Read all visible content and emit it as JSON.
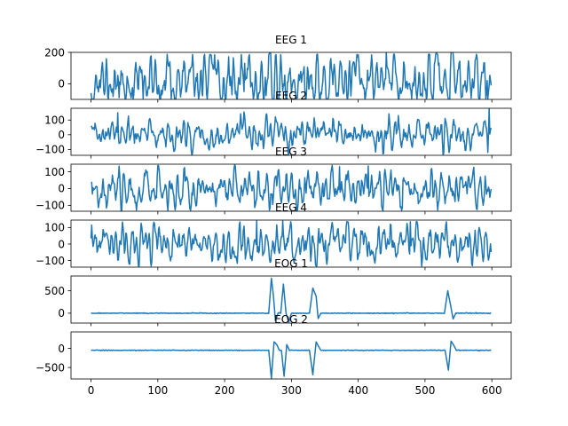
{
  "chart_data": {
    "type": "line",
    "layout": "stacked-subplots-shared-x",
    "line_color": "#1f77b4",
    "xlabel": "",
    "ylabel": "",
    "grid": false,
    "x_range": [
      0,
      599
    ],
    "xlim": [
      -30,
      629
    ],
    "x_ticks": [
      0,
      100,
      200,
      300,
      400,
      500,
      600
    ],
    "x_tick_labels": [
      "0",
      "100",
      "200",
      "300",
      "400",
      "500",
      "600"
    ],
    "panels": [
      {
        "title": "EEG 1",
        "ylim": [
          -100,
          200
        ],
        "y_ticks": [
          0,
          200
        ],
        "y_tick_labels": [
          "0",
          "200"
        ],
        "signal": "eeg",
        "amplitude": 85,
        "offset": 25,
        "seed": 11,
        "events": [],
        "peaks": [
          {
            "x": 442,
            "value": 200
          },
          {
            "x": 230,
            "value": 130
          }
        ]
      },
      {
        "title": "EEG 2",
        "ylim": [
          -140,
          180
        ],
        "y_ticks": [
          -100,
          0,
          100
        ],
        "y_tick_labels": [
          "−100",
          "0",
          "100"
        ],
        "signal": "eeg",
        "amplitude": 50,
        "offset": 0,
        "seed": 23,
        "events": [],
        "peaks": [
          {
            "x": 40,
            "value": 150
          },
          {
            "x": 596,
            "value": 185
          },
          {
            "x": 594,
            "value": -120
          }
        ]
      },
      {
        "title": "EEG 3",
        "ylim": [
          -135,
          145
        ],
        "y_ticks": [
          -100,
          0,
          100
        ],
        "y_tick_labels": [
          "−100",
          "0",
          "100"
        ],
        "signal": "eeg",
        "amplitude": 55,
        "offset": 0,
        "seed": 37,
        "events": [],
        "peaks": [
          {
            "x": 372,
            "value": 130
          },
          {
            "x": 415,
            "value": 135
          },
          {
            "x": 578,
            "value": -125
          }
        ]
      },
      {
        "title": "EEG 4",
        "ylim": [
          -140,
          145
        ],
        "y_ticks": [
          -100,
          0,
          100
        ],
        "y_tick_labels": [
          "−100",
          "0",
          "100"
        ],
        "signal": "eeg",
        "amplitude": 55,
        "offset": 0,
        "seed": 53,
        "events": [],
        "peaks": [
          {
            "x": 248,
            "value": 140
          },
          {
            "x": 287,
            "value": 140
          },
          {
            "x": 478,
            "value": 135
          }
        ]
      },
      {
        "title": "EOG 1",
        "ylim": [
          -220,
          830
        ],
        "y_ticks": [
          0,
          500
        ],
        "y_tick_labels": [
          "0",
          "500"
        ],
        "signal": "eog",
        "amplitude": 12,
        "offset": 0,
        "seed": 71,
        "events": [
          {
            "x": 272,
            "shape": [
              [
                -6,
                0
              ],
              [
                -2,
                780
              ],
              [
                1,
                400
              ],
              [
                4,
                -170
              ],
              [
                8,
                0
              ]
            ]
          },
          {
            "x": 290,
            "shape": [
              [
                -6,
                0
              ],
              [
                -2,
                650
              ],
              [
                2,
                -10
              ],
              [
                6,
                -200
              ],
              [
                10,
                0
              ]
            ]
          },
          {
            "x": 335,
            "shape": [
              [
                -8,
                0
              ],
              [
                -3,
                560
              ],
              [
                2,
                380
              ],
              [
                5,
                -120
              ],
              [
                9,
                0
              ]
            ]
          },
          {
            "x": 537,
            "shape": [
              [
                -8,
                0
              ],
              [
                -3,
                500
              ],
              [
                1,
                200
              ],
              [
                5,
                -130
              ],
              [
                9,
                0
              ]
            ]
          }
        ],
        "peaks": []
      },
      {
        "title": "EOG 2",
        "ylim": [
          -800,
          430
        ],
        "y_ticks": [
          -500,
          0
        ],
        "y_tick_labels": [
          "−500",
          "0"
        ],
        "signal": "eog",
        "amplitude": 12,
        "offset": -50,
        "seed": 89,
        "events": [
          {
            "x": 274,
            "shape": [
              [
                -8,
                0
              ],
              [
                -4,
                -730
              ],
              [
                0,
                220
              ],
              [
                4,
                150
              ],
              [
                8,
                0
              ]
            ]
          },
          {
            "x": 291,
            "shape": [
              [
                -6,
                0
              ],
              [
                -2,
                -680
              ],
              [
                2,
                150
              ],
              [
                6,
                0
              ]
            ]
          },
          {
            "x": 335,
            "shape": [
              [
                -8,
                0
              ],
              [
                -3,
                -640
              ],
              [
                2,
                220
              ],
              [
                5,
                120
              ],
              [
                9,
                0
              ]
            ]
          },
          {
            "x": 538,
            "shape": [
              [
                -8,
                0
              ],
              [
                -3,
                -520
              ],
              [
                1,
                240
              ],
              [
                5,
                130
              ],
              [
                9,
                0
              ]
            ]
          }
        ],
        "peaks": []
      }
    ]
  }
}
